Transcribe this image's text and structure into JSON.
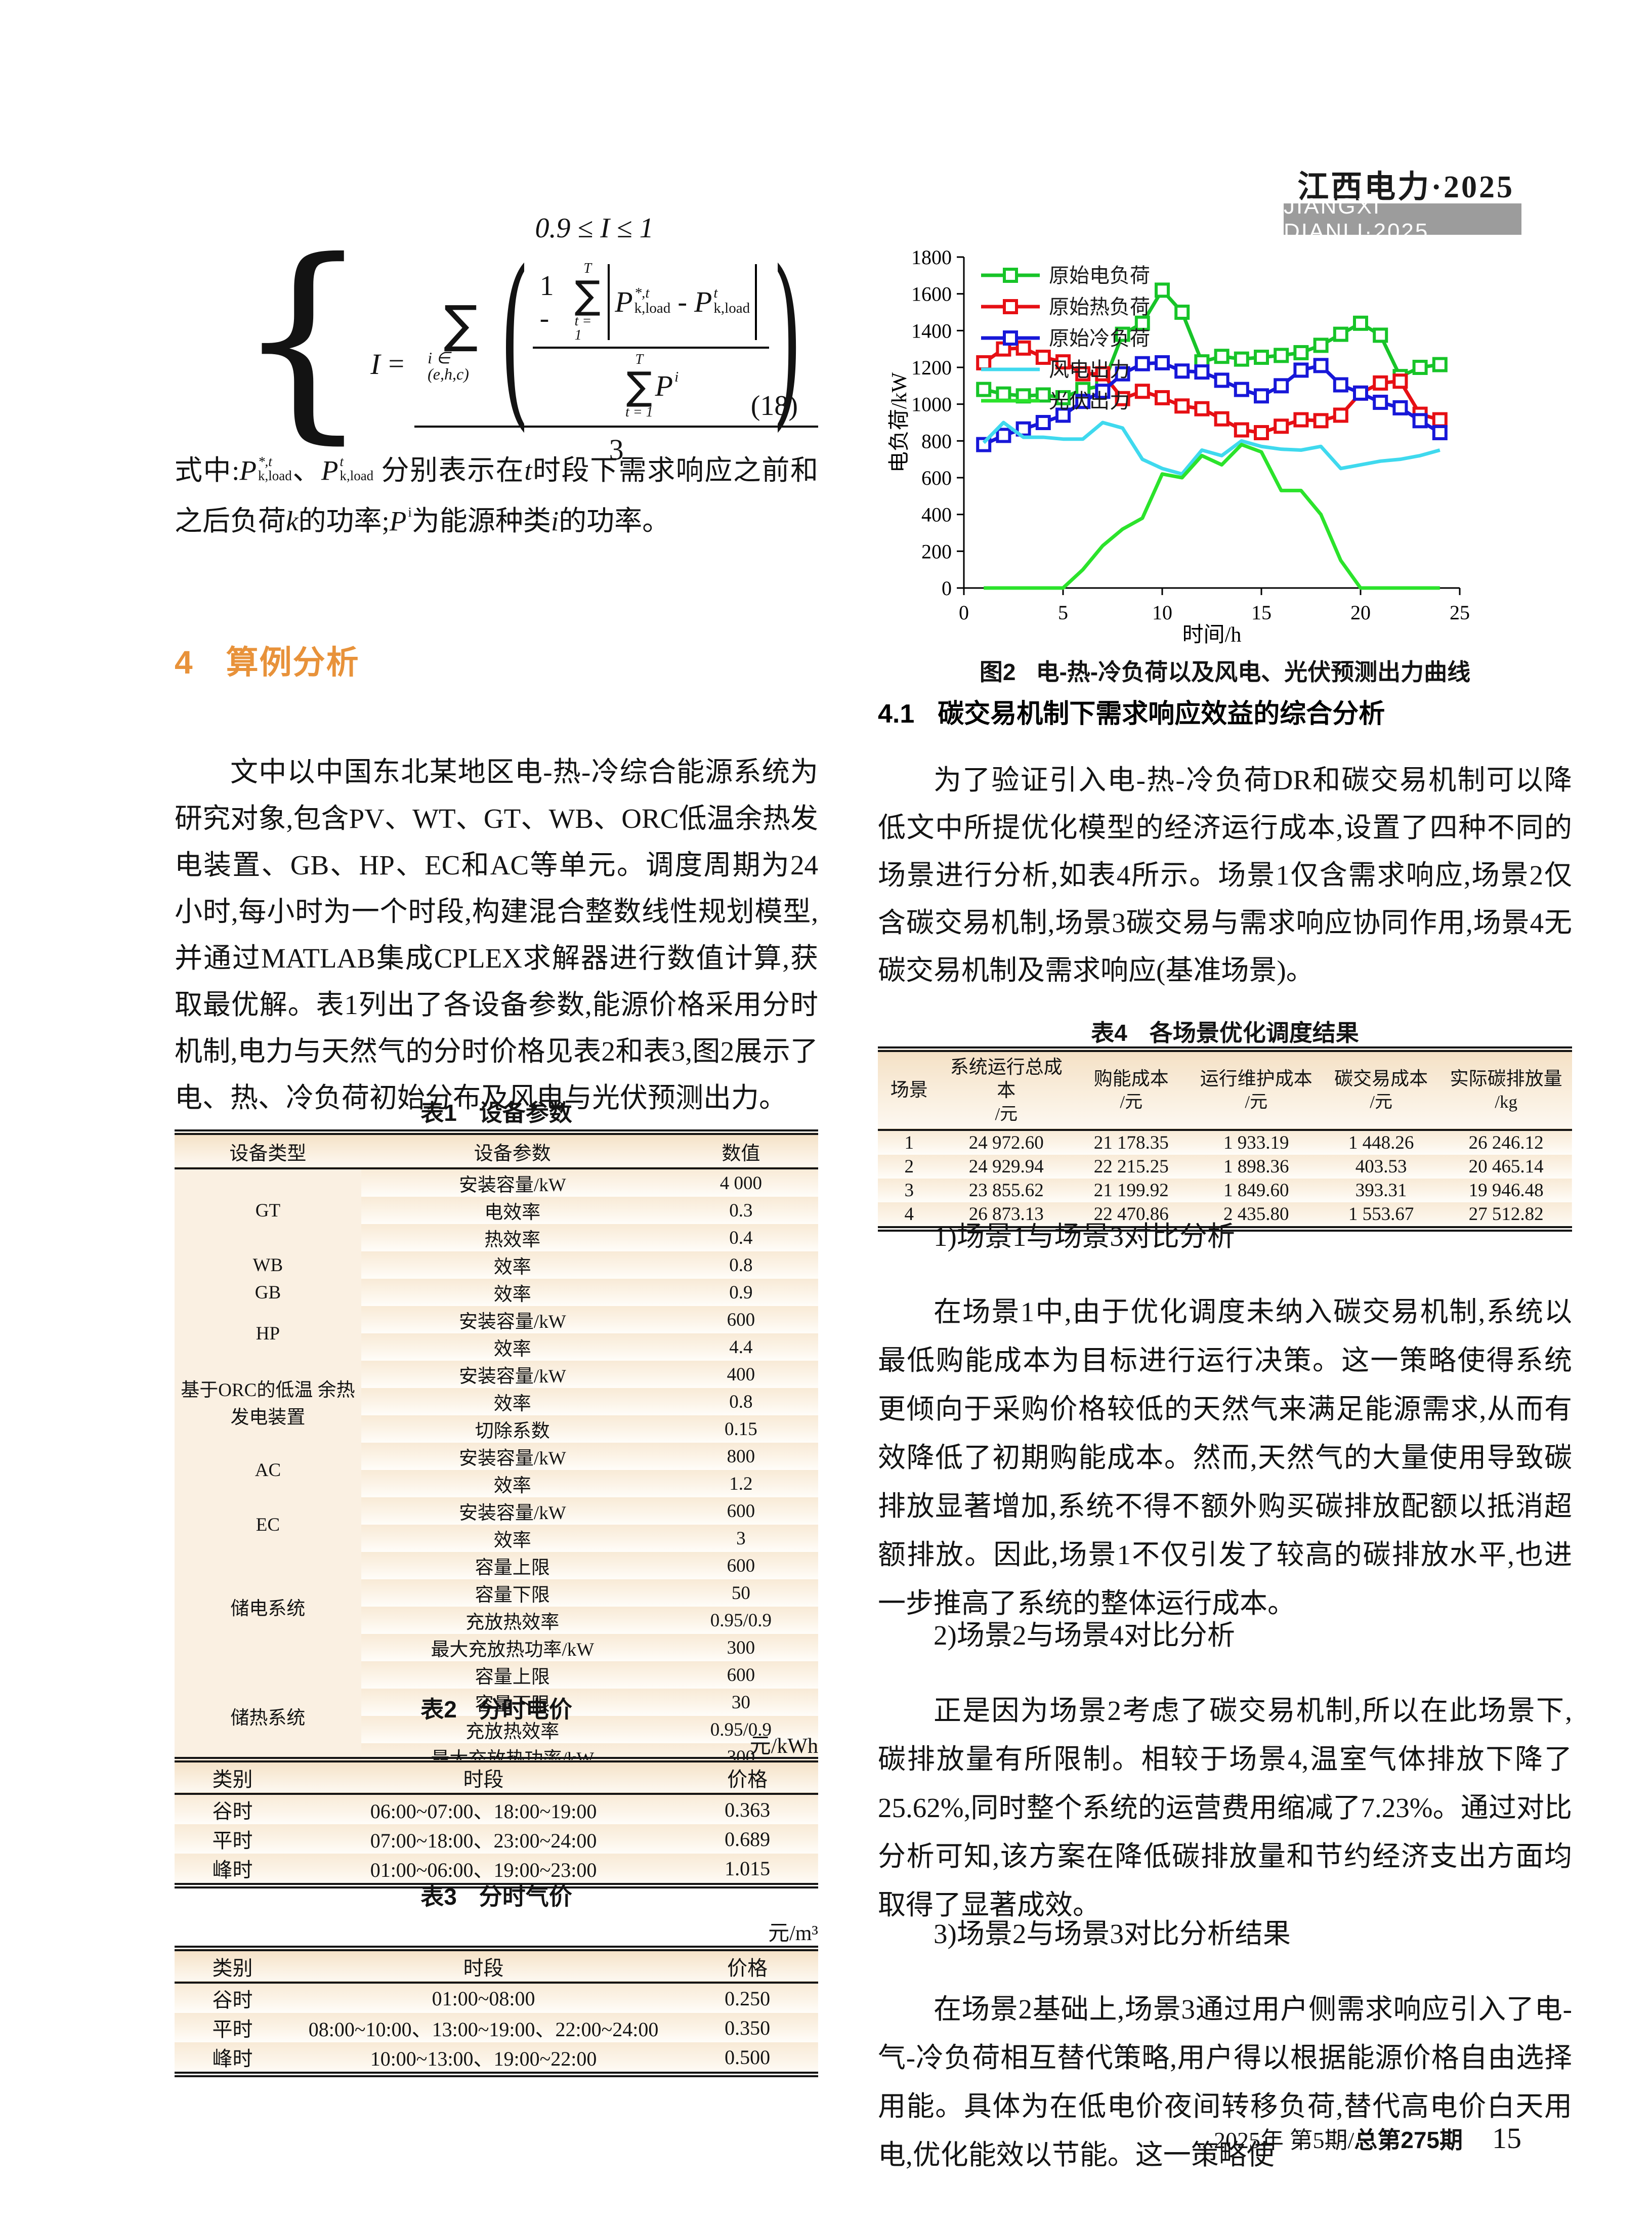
{
  "header": {
    "journal_cn": "江西电力",
    "journal_year": "·2025",
    "journal_en": "JIANGXI DIANLI·2025"
  },
  "equation": {
    "constraint": "0.9 ≤ I ≤ 1",
    "lhs": "I",
    "equals": "=",
    "outer_sum": "∑",
    "outer_sum_limits": "i ∈ (e,h,c)",
    "one_minus": "1 -",
    "inner_sum": "∑",
    "sum_top": "T",
    "sum_bottom": "t = 1",
    "p_star_base": "P",
    "p_star_sup": "*,t",
    "p_star_sub": "k,load",
    "minus": "-",
    "p_t_base": "P",
    "p_t_sup": "t",
    "p_t_sub": "k,load",
    "p_i_base": "P",
    "p_i_sub": "i",
    "denominator": "3",
    "number": "(18)"
  },
  "where_clause": {
    "prefix": "式中:",
    "p1_base": "P",
    "p1_sup": "*,t",
    "p1_sub": "k,load",
    "sep": "、",
    "p2_base": "P",
    "p2_sup": "t",
    "p2_sub": "k,load",
    "mid1": " 分别表示在",
    "t_var": "t",
    "mid2": "时段下需求响应之前",
    "line2a": "和之后负荷",
    "k_var": "k",
    "line2b": "的功率;",
    "p3_base": "P",
    "p3_sub": "i",
    "line2c": "为能源种类",
    "i_var": "i",
    "line2d": "的功率。"
  },
  "section4": {
    "num": "4",
    "title": "算例分析"
  },
  "paragraphs": {
    "case_intro": "文中以中国东北某地区电-热-冷综合能源系统为研究对象,包含PV、WT、GT、WB、ORC低温余热发电装置、GB、HP、EC和AC等单元。调度周期为24小时,每小时为一个时段,构建混合整数线性规划模型,并通过MATLAB集成CPLEX求解器进行数值计算,获取最优解。表1列出了各设备参数,能源价格采用分时机制,电力与天然气的分时价格见表2和表3,图2展示了电、热、冷负荷初始分布及风电与光伏预测出力。",
    "scenario_intro": "为了验证引入电-热-冷负荷DR和碳交易机制可以降低文中所提优化模型的经济运行成本,设置了四种不同的场景进行分析,如表4所示。场景1仅含需求响应,场景2仅含碳交易机制,场景3碳交易与需求响应协同作用,场景4无碳交易机制及需求响应(基准场景)。",
    "sub1": "1)场景1与场景3对比分析",
    "p1": "在场景1中,由于优化调度未纳入碳交易机制,系统以最低购能成本为目标进行运行决策。这一策略使得系统更倾向于采购价格较低的天然气来满足能源需求,从而有效降低了初期购能成本。然而,天然气的大量使用导致碳排放显著增加,系统不得不额外购买碳排放配额以抵消超额排放。因此,场景1不仅引发了较高的碳排放水平,也进一步推高了系统的整体运行成本。",
    "sub2": "2)场景2与场景4对比分析",
    "p2": "正是因为场景2考虑了碳交易机制,所以在此场景下,碳排放量有所限制。相较于场景4,温室气体排放下降了25.62%,同时整个系统的运营费用缩减了7.23%。通过对比分析可知,该方案在降低碳排放量和节约经济支出方面均取得了显著成效。",
    "sub3": "3)场景2与场景3对比分析结果",
    "p3": "在场景2基础上,场景3通过用户侧需求响应引入了电-气-冷负荷相互替代策略,用户得以根据能源价格自由选择用能。具体为在低电价夜间转移负荷,替代高电价白天用电,优化能效以节能。这一策略使"
  },
  "section41": {
    "num": "4.1",
    "title": "碳交易机制下需求响应效益的综合分析"
  },
  "figure2": {
    "label": "图2",
    "caption": "电-热-冷负荷以及风电、光伏预测出力曲线"
  },
  "tables": {
    "t1": {
      "label": "表1",
      "title": "设备参数",
      "headers": [
        "设备类型",
        "设备参数",
        "数值"
      ],
      "groups": [
        {
          "device": "GT",
          "rows": [
            [
              "安装容量/kW",
              "4 000"
            ],
            [
              "电效率",
              "0.3"
            ],
            [
              "热效率",
              "0.4"
            ]
          ]
        },
        {
          "device": "WB",
          "rows": [
            [
              "效率",
              "0.8"
            ]
          ]
        },
        {
          "device": "GB",
          "rows": [
            [
              "效率",
              "0.9"
            ]
          ]
        },
        {
          "device": "HP",
          "rows": [
            [
              "安装容量/kW",
              "600"
            ],
            [
              "效率",
              "4.4"
            ]
          ]
        },
        {
          "device": "基于ORC的低温 余热发电装置",
          "rows": [
            [
              "安装容量/kW",
              "400"
            ],
            [
              "效率",
              "0.8"
            ],
            [
              "切除系数",
              "0.15"
            ]
          ]
        },
        {
          "device": "AC",
          "rows": [
            [
              "安装容量/kW",
              "800"
            ],
            [
              "效率",
              "1.2"
            ]
          ]
        },
        {
          "device": "EC",
          "rows": [
            [
              "安装容量/kW",
              "600"
            ],
            [
              "效率",
              "3"
            ]
          ]
        },
        {
          "device": "储电系统",
          "rows": [
            [
              "容量上限",
              "600"
            ],
            [
              "容量下限",
              "50"
            ],
            [
              "充放热效率",
              "0.95/0.9"
            ],
            [
              "最大充放热功率/kW",
              "300"
            ]
          ]
        },
        {
          "device": "储热系统",
          "rows": [
            [
              "容量上限",
              "600"
            ],
            [
              "容量下限",
              "30"
            ],
            [
              "充放热效率",
              "0.95/0.9"
            ],
            [
              "最大充放热功率/kW",
              "300"
            ]
          ]
        }
      ]
    },
    "t2": {
      "label": "表2",
      "title": "分时电价",
      "unit": "元/kWh",
      "headers": [
        "类别",
        "时段",
        "价格"
      ],
      "rows": [
        [
          "谷时",
          "06:00~07:00、18:00~19:00",
          "0.363"
        ],
        [
          "平时",
          "07:00~18:00、23:00~24:00",
          "0.689"
        ],
        [
          "峰时",
          "01:00~06:00、19:00~23:00",
          "1.015"
        ]
      ]
    },
    "t3": {
      "label": "表3",
      "title": "分时气价",
      "unit": "元/m³",
      "headers": [
        "类别",
        "时段",
        "价格"
      ],
      "rows": [
        [
          "谷时",
          "01:00~08:00",
          "0.250"
        ],
        [
          "平时",
          "08:00~10:00、13:00~19:00、22:00~24:00",
          "0.350"
        ],
        [
          "峰时",
          "10:00~13:00、19:00~22:00",
          "0.500"
        ]
      ]
    },
    "t4": {
      "label": "表4",
      "title": "各场景优化调度结果",
      "headers": [
        [
          "场景",
          ""
        ],
        [
          "系统运行总成本",
          "/元"
        ],
        [
          "购能成本",
          "/元"
        ],
        [
          "运行维护成本",
          "/元"
        ],
        [
          "碳交易成本",
          "/元"
        ],
        [
          "实际碳排放量",
          "/kg"
        ]
      ],
      "rows": [
        [
          "1",
          "24 972.60",
          "21 178.35",
          "1 933.19",
          "1 448.26",
          "26 246.12"
        ],
        [
          "2",
          "24 929.94",
          "22 215.25",
          "1 898.36",
          "403.53",
          "20 465.14"
        ],
        [
          "3",
          "23 855.62",
          "21 199.92",
          "1 849.60",
          "393.31",
          "19 946.48"
        ],
        [
          "4",
          "26 873.13",
          "22 470.86",
          "2 435.80",
          "1 553.67",
          "27 512.82"
        ]
      ]
    }
  },
  "chart_data": {
    "type": "line",
    "title": "",
    "xlabel": "时间/h",
    "ylabel": "电负荷/kW",
    "xlim": [
      0,
      25
    ],
    "ylim": [
      0,
      1800
    ],
    "xticks": [
      0,
      5,
      10,
      15,
      20,
      25
    ],
    "yticks": [
      0,
      200,
      400,
      600,
      800,
      1000,
      1200,
      1400,
      1600,
      1800
    ],
    "grid": false,
    "legend_position": "top-left",
    "x": [
      1,
      2,
      3,
      4,
      5,
      6,
      7,
      8,
      9,
      10,
      11,
      12,
      13,
      14,
      15,
      16,
      17,
      18,
      19,
      20,
      21,
      22,
      23,
      24
    ],
    "series": [
      {
        "name": "原始电负荷",
        "color": "#17c428",
        "marker": "square",
        "values": [
          1080,
          1055,
          1045,
          1050,
          1035,
          1080,
          1100,
          1380,
          1440,
          1620,
          1500,
          1230,
          1260,
          1245,
          1255,
          1265,
          1280,
          1320,
          1380,
          1440,
          1375,
          1150,
          1200,
          1215
        ]
      },
      {
        "name": "原始热负荷",
        "color": "#e60f14",
        "marker": "square",
        "values": [
          1225,
          1300,
          1305,
          1255,
          1230,
          1165,
          1165,
          1030,
          1070,
          1035,
          990,
          975,
          920,
          860,
          845,
          880,
          915,
          910,
          940,
          1060,
          1115,
          1125,
          945,
          915
        ]
      },
      {
        "name": "原始冷负荷",
        "color": "#1717d8",
        "marker": "square",
        "values": [
          780,
          830,
          865,
          900,
          940,
          1015,
          1070,
          1165,
          1220,
          1225,
          1180,
          1175,
          1130,
          1080,
          1045,
          1100,
          1185,
          1210,
          1105,
          1060,
          1010,
          980,
          910,
          845
        ]
      },
      {
        "name": "风电出力",
        "color": "#3fd9ee",
        "marker": "none",
        "values": [
          790,
          900,
          820,
          820,
          810,
          810,
          900,
          870,
          700,
          650,
          620,
          750,
          720,
          800,
          770,
          755,
          750,
          770,
          650,
          670,
          690,
          700,
          720,
          750
        ]
      },
      {
        "name": "光伏出力",
        "color": "#2be32b",
        "marker": "none",
        "values": [
          0,
          0,
          0,
          0,
          0,
          100,
          230,
          320,
          380,
          620,
          600,
          720,
          670,
          780,
          740,
          530,
          530,
          400,
          150,
          0,
          0,
          0,
          0,
          0
        ]
      }
    ]
  },
  "footer": {
    "issue": "2025年 第5期/",
    "volume": "总第275期",
    "page": "15"
  }
}
